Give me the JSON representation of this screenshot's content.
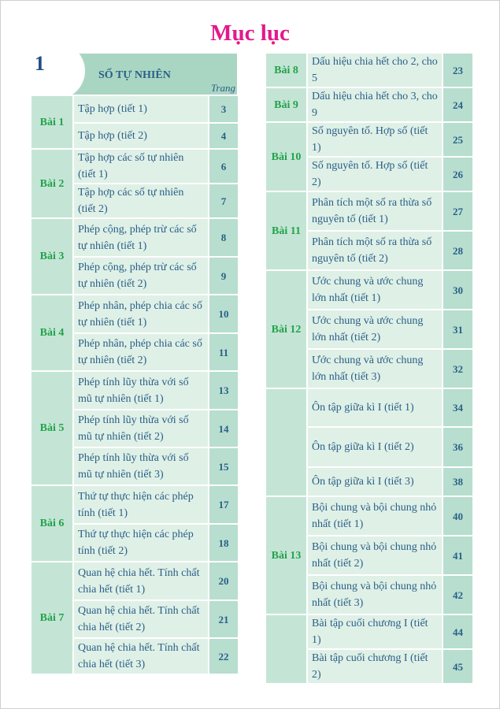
{
  "title": "Mục lục",
  "chapter": {
    "number": "1",
    "title": "SỐ TỰ NHIÊN",
    "page_header": "Trang"
  },
  "left": [
    {
      "label": "Bài 1",
      "items": [
        {
          "text": "Tập hợp (tiết 1)",
          "page": "3"
        },
        {
          "text": "Tập hợp (tiết 2)",
          "page": "4"
        }
      ]
    },
    {
      "label": "Bài 2",
      "items": [
        {
          "text": "Tập hợp các số tự nhiên (tiết 1)",
          "page": "6"
        },
        {
          "text": "Tập hợp các số tự nhiên (tiết 2)",
          "page": "7"
        }
      ]
    },
    {
      "label": "Bài 3",
      "items": [
        {
          "text": "Phép cộng, phép trừ các số tự nhiên (tiết 1)",
          "page": "8"
        },
        {
          "text": "Phép cộng, phép trừ các số tự nhiên (tiết 2)",
          "page": "9"
        }
      ]
    },
    {
      "label": "Bài 4",
      "items": [
        {
          "text": "Phép nhân, phép chia các số tự nhiên (tiết 1)",
          "page": "10"
        },
        {
          "text": "Phép nhân, phép chia các số tự nhiên (tiết 2)",
          "page": "11"
        }
      ]
    },
    {
      "label": "Bài 5",
      "items": [
        {
          "text": "Phép tính lũy thừa với số mũ tự nhiên (tiết 1)",
          "page": "13"
        },
        {
          "text": "Phép tính lũy thừa với số mũ tự nhiên (tiết 2)",
          "page": "14"
        },
        {
          "text": "Phép tính lũy thừa với số mũ tự nhiên (tiết 3)",
          "page": "15"
        }
      ]
    },
    {
      "label": "Bài 6",
      "items": [
        {
          "text": "Thứ tự thực hiện các phép tính (tiết 1)",
          "page": "17"
        },
        {
          "text": "Thứ tự thực hiện các phép tính (tiết 2)",
          "page": "18"
        }
      ]
    },
    {
      "label": "Bài 7",
      "items": [
        {
          "text": "Quan hệ chia hết. Tính chất chia hết (tiết 1)",
          "page": "20"
        },
        {
          "text": "Quan hệ chia hết. Tính chất chia hết (tiết 2)",
          "page": "21"
        },
        {
          "text": "Quan hệ chia hết. Tính chất chia hết (tiết 3)",
          "page": "22"
        }
      ]
    }
  ],
  "right": [
    {
      "label": "Bài 8",
      "items": [
        {
          "text": "Dấu hiệu chia hết cho 2, cho 5",
          "page": "23"
        }
      ]
    },
    {
      "label": "Bài 9",
      "items": [
        {
          "text": "Dấu hiệu chia hết cho 3, cho 9",
          "page": "24"
        }
      ]
    },
    {
      "label": "Bài 10",
      "items": [
        {
          "text": "Số nguyên tố. Hợp số (tiết 1)",
          "page": "25"
        },
        {
          "text": "Số nguyên tố. Hợp số (tiết 2)",
          "page": "26"
        }
      ]
    },
    {
      "label": "Bài 11",
      "items": [
        {
          "text": "Phân tích một số ra thừa số nguyên tố (tiết 1)",
          "page": "27"
        },
        {
          "text": "Phân tích một số ra thừa số nguyên tố (tiết 2)",
          "page": "28"
        }
      ]
    },
    {
      "label": "Bài 12",
      "items": [
        {
          "text": "Ước chung và ước chung lớn nhất (tiết 1)",
          "page": "30"
        },
        {
          "text": "Ước chung và ước chung lớn nhất (tiết 2)",
          "page": "31"
        },
        {
          "text": "Ước chung và ước chung lớn nhất (tiết 3)",
          "page": "32"
        }
      ]
    },
    {
      "label": "",
      "items": [
        {
          "text": "Ôn tập giữa kì I (tiết 1)",
          "page": "34"
        },
        {
          "text": "Ôn tập giữa kì I (tiết 2)",
          "page": "36"
        },
        {
          "text": "Ôn tập giữa kì I (tiết 3)",
          "page": "38"
        }
      ]
    },
    {
      "label": "Bài 13",
      "items": [
        {
          "text": "Bội chung và bội chung nhỏ nhất (tiết 1)",
          "page": "40"
        },
        {
          "text": "Bội chung và bội chung nhỏ nhất (tiết 2)",
          "page": "41"
        },
        {
          "text": "Bội chung và bội chung nhỏ nhất (tiết 3)",
          "page": "42"
        }
      ]
    },
    {
      "label": "",
      "items": [
        {
          "text": "Bài tập cuối chương I (tiết 1)",
          "page": "44"
        },
        {
          "text": "Bài tập cuối chương I (tiết 2)",
          "page": "45"
        }
      ]
    }
  ]
}
